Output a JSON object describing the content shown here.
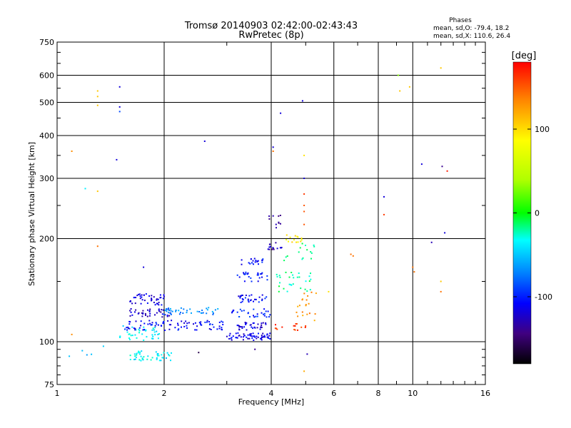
{
  "chart_data": {
    "type": "scatter",
    "title": "Tromsø 20140903 02:42:00-02:43:43",
    "subtitle": "RwPretec (8p)",
    "xlabel": "Frequency [MHz]",
    "ylabel": "Stationary phase Virtual Height [km]",
    "x_scale": "log",
    "y_scale": "log",
    "xlim": [
      1,
      16
    ],
    "ylim": [
      75,
      750
    ],
    "x_ticks": [
      1,
      2,
      4,
      6,
      8,
      10,
      16
    ],
    "y_ticks": [
      75,
      100,
      200,
      300,
      400,
      500,
      600,
      750
    ],
    "grid": true,
    "phase_info": {
      "title": "Phases",
      "line_o": "mean, sd,O: -79.4, 18.2",
      "line_x": "mean, sd,X: 110.6, 26.4"
    },
    "colorbar": {
      "label": "[deg]",
      "range": [
        -180,
        180
      ],
      "ticks": [
        100,
        0,
        -100
      ],
      "colors": [
        "#ff0000",
        "#ff8000",
        "#ffff00",
        "#00ff00",
        "#00ffff",
        "#0080ff",
        "#0000ff",
        "#40007f",
        "#000000"
      ]
    },
    "clusters": [
      {
        "x": [
          1.05,
          1.25
        ],
        "y": [
          96,
          90
        ],
        "phase": -60,
        "n": 4
      },
      {
        "x": [
          1.5,
          1.95
        ],
        "y": [
          100,
          112
        ],
        "phase": -40,
        "n": 40
      },
      {
        "x": [
          1.55,
          2.1
        ],
        "y": [
          88,
          94
        ],
        "phase": -40,
        "n": 45
      },
      {
        "x": [
          1.55,
          2.0
        ],
        "y": [
          108,
          116
        ],
        "phase": -110,
        "n": 35
      },
      {
        "x": [
          1.6,
          2.1
        ],
        "y": [
          118,
          125
        ],
        "phase": -125,
        "n": 40
      },
      {
        "x": [
          1.6,
          2.0
        ],
        "y": [
          128,
          138
        ],
        "phase": -120,
        "n": 45
      },
      {
        "x": [
          2.0,
          3.0
        ],
        "y": [
          108,
          116
        ],
        "phase": -110,
        "n": 50
      },
      {
        "x": [
          2.0,
          2.9
        ],
        "y": [
          120,
          126
        ],
        "phase": -70,
        "n": 40
      },
      {
        "x": [
          3.0,
          4.0
        ],
        "y": [
          101,
          106
        ],
        "phase": -115,
        "n": 60
      },
      {
        "x": [
          3.2,
          3.9
        ],
        "y": [
          108,
          114
        ],
        "phase": -120,
        "n": 35
      },
      {
        "x": [
          3.1,
          4.0
        ],
        "y": [
          118,
          125
        ],
        "phase": -100,
        "n": 30
      },
      {
        "x": [
          3.2,
          3.9
        ],
        "y": [
          130,
          137
        ],
        "phase": -110,
        "n": 30
      },
      {
        "x": [
          3.2,
          3.9
        ],
        "y": [
          150,
          160
        ],
        "phase": -105,
        "n": 25
      },
      {
        "x": [
          3.3,
          3.9
        ],
        "y": [
          168,
          175
        ],
        "phase": -110,
        "n": 20
      },
      {
        "x": [
          3.9,
          4.3
        ],
        "y": [
          185,
          195
        ],
        "phase": -130,
        "n": 15
      },
      {
        "x": [
          3.9,
          4.3
        ],
        "y": [
          215,
          235
        ],
        "phase": -130,
        "n": 10
      },
      {
        "x": [
          4.0,
          5.0
        ],
        "y": [
          108,
          113
        ],
        "phase": 160,
        "n": 15
      },
      {
        "x": [
          4.1,
          5.2
        ],
        "y": [
          140,
          160
        ],
        "phase": -20,
        "n": 30
      },
      {
        "x": [
          4.4,
          4.9
        ],
        "y": [
          195,
          205
        ],
        "phase": 95,
        "n": 15
      },
      {
        "x": [
          4.7,
          5.4
        ],
        "y": [
          115,
          140
        ],
        "phase": 130,
        "n": 20
      },
      {
        "x": [
          4.3,
          5.4
        ],
        "y": [
          170,
          195
        ],
        "phase": -20,
        "n": 15
      }
    ],
    "points": [
      {
        "x": 1.1,
        "y": 360,
        "phase": 130
      },
      {
        "x": 1.1,
        "y": 105,
        "phase": 130
      },
      {
        "x": 1.2,
        "y": 280,
        "phase": -40
      },
      {
        "x": 1.3,
        "y": 540,
        "phase": 110
      },
      {
        "x": 1.3,
        "y": 520,
        "phase": 110
      },
      {
        "x": 1.3,
        "y": 490,
        "phase": 110
      },
      {
        "x": 1.3,
        "y": 275,
        "phase": 110
      },
      {
        "x": 1.3,
        "y": 190,
        "phase": 140
      },
      {
        "x": 1.35,
        "y": 97,
        "phase": -50
      },
      {
        "x": 1.5,
        "y": 555,
        "phase": -120
      },
      {
        "x": 1.5,
        "y": 485,
        "phase": -120
      },
      {
        "x": 1.5,
        "y": 470,
        "phase": -90
      },
      {
        "x": 1.47,
        "y": 340,
        "phase": -120
      },
      {
        "x": 1.75,
        "y": 165,
        "phase": -120
      },
      {
        "x": 2.6,
        "y": 385,
        "phase": -120
      },
      {
        "x": 2.5,
        "y": 93,
        "phase": -160
      },
      {
        "x": 3.6,
        "y": 95,
        "phase": -140
      },
      {
        "x": 4.05,
        "y": 370,
        "phase": -120
      },
      {
        "x": 4.05,
        "y": 360,
        "phase": 140
      },
      {
        "x": 4.25,
        "y": 465,
        "phase": -120
      },
      {
        "x": 4.9,
        "y": 505,
        "phase": -120
      },
      {
        "x": 4.95,
        "y": 350,
        "phase": 100
      },
      {
        "x": 4.95,
        "y": 300,
        "phase": -120
      },
      {
        "x": 4.95,
        "y": 270,
        "phase": 160
      },
      {
        "x": 4.95,
        "y": 250,
        "phase": 150
      },
      {
        "x": 4.95,
        "y": 240,
        "phase": 150
      },
      {
        "x": 4.95,
        "y": 220,
        "phase": 150
      },
      {
        "x": 5.05,
        "y": 92,
        "phase": -130
      },
      {
        "x": 4.95,
        "y": 82,
        "phase": 120
      },
      {
        "x": 5.8,
        "y": 140,
        "phase": 100
      },
      {
        "x": 6.7,
        "y": 180,
        "phase": 140
      },
      {
        "x": 6.8,
        "y": 178,
        "phase": 140
      },
      {
        "x": 8.3,
        "y": 265,
        "phase": -120
      },
      {
        "x": 8.3,
        "y": 235,
        "phase": 160
      },
      {
        "x": 9.1,
        "y": 600,
        "phase": 30
      },
      {
        "x": 9.2,
        "y": 540,
        "phase": 110
      },
      {
        "x": 9.8,
        "y": 555,
        "phase": 110
      },
      {
        "x": 10.0,
        "y": 165,
        "phase": 140
      },
      {
        "x": 10.1,
        "y": 160,
        "phase": 140
      },
      {
        "x": 10.6,
        "y": 330,
        "phase": -120
      },
      {
        "x": 11.3,
        "y": 195,
        "phase": -130
      },
      {
        "x": 12.1,
        "y": 325,
        "phase": -140
      },
      {
        "x": 12.5,
        "y": 315,
        "phase": 170
      },
      {
        "x": 12.3,
        "y": 208,
        "phase": -120
      },
      {
        "x": 12.0,
        "y": 630,
        "phase": 110
      },
      {
        "x": 12.0,
        "y": 150,
        "phase": 110
      },
      {
        "x": 12.0,
        "y": 140,
        "phase": 140
      }
    ]
  }
}
